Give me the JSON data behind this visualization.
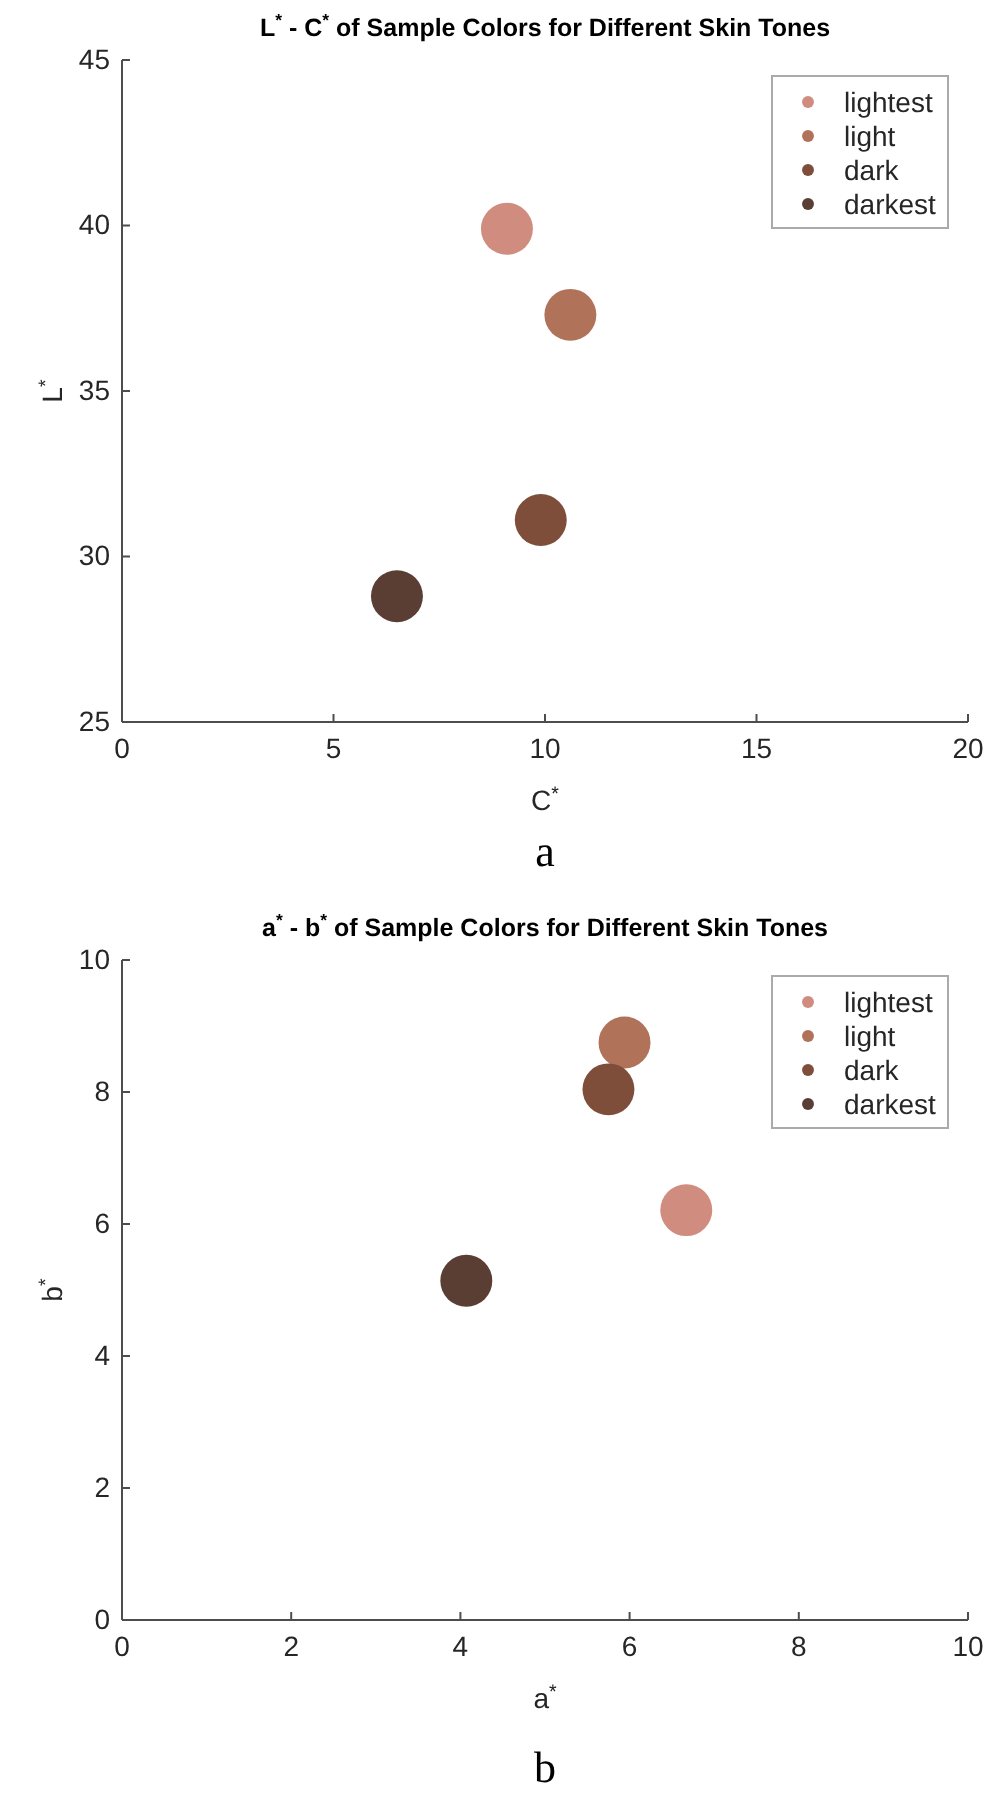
{
  "chart_data": [
    {
      "type": "scatter",
      "title": "L$^{*}$ - C$^{*}$ of Sample Colors for Different Skin Tones",
      "xlabel": "C$^{*}$",
      "ylabel": "L$^{*}$",
      "xlim": [
        0,
        20
      ],
      "xticks": [
        0,
        5,
        10,
        15,
        20
      ],
      "ylim": [
        25,
        45
      ],
      "yticks": [
        25,
        30,
        35,
        40,
        45
      ],
      "marker": "circle",
      "legend": "top right",
      "grid": false,
      "annotations": [
        "a"
      ],
      "series": [
        {
          "name": "lightest",
          "color": "#d08c7e",
          "x": [
            9.1
          ],
          "values": [
            39.9
          ]
        },
        {
          "name": "light",
          "color": "#b0735a",
          "x": [
            10.6
          ],
          "values": [
            37.3
          ]
        },
        {
          "name": "dark",
          "color": "#7e4e3a",
          "x": [
            9.9
          ],
          "values": [
            31.1
          ]
        },
        {
          "name": "darkest",
          "color": "#5a3d33",
          "x": [
            6.5
          ],
          "values": [
            28.8
          ]
        }
      ]
    },
    {
      "type": "scatter",
      "title": "a$^{*}$ - b$^{*}$ of Sample Colors for Different Skin Tones",
      "xlabel": "a$^{*}$",
      "ylabel": "b$^{*}$",
      "xlim": [
        0,
        10
      ],
      "xticks": [
        0,
        2,
        4,
        6,
        8,
        10
      ],
      "ylim": [
        0,
        10
      ],
      "yticks": [
        0,
        2,
        4,
        6,
        8,
        10
      ],
      "marker": "circle",
      "legend": "top right",
      "grid": false,
      "annotations": [
        "b"
      ],
      "series": [
        {
          "name": "lightest",
          "color": "#d08c7e",
          "x": [
            6.67
          ],
          "values": [
            6.21
          ]
        },
        {
          "name": "light",
          "color": "#b0735a",
          "x": [
            5.94
          ],
          "values": [
            8.75
          ]
        },
        {
          "name": "dark",
          "color": "#7e4e3a",
          "x": [
            5.75
          ],
          "values": [
            8.04
          ]
        },
        {
          "name": "darkest",
          "color": "#5a3d33",
          "x": [
            4.07
          ],
          "values": [
            5.14
          ]
        }
      ]
    }
  ]
}
